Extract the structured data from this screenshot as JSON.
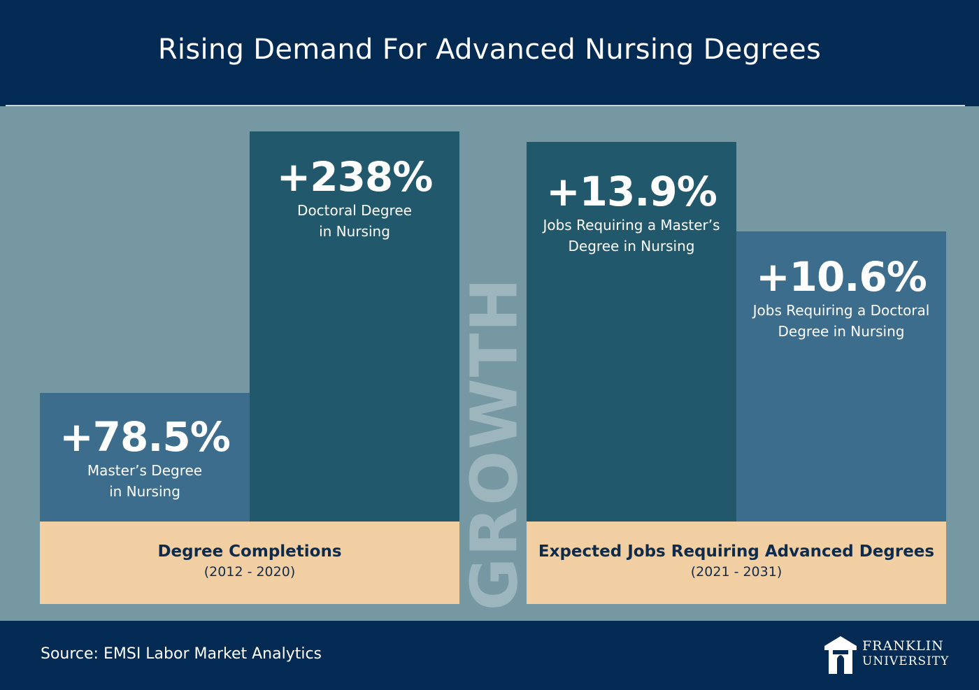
{
  "header": {
    "title": "Rising Demand For Advanced Nursing Degrees"
  },
  "chart_data": {
    "type": "bar",
    "title": "Rising Demand For Advanced Nursing Degrees",
    "value_axis_label": "GROWTH",
    "unit": "%",
    "groups": [
      {
        "title": "Degree Completions",
        "range": "(2012 - 2020)",
        "bars": [
          {
            "value": 78.5,
            "value_label": "+78.5%",
            "label_lines": [
              "Master’s Degree",
              "in Nursing"
            ],
            "color": "#3d6d8d"
          },
          {
            "value": 238,
            "value_label": "+238%",
            "label_lines": [
              "Doctoral Degree",
              "in Nursing"
            ],
            "color": "#22586b"
          }
        ]
      },
      {
        "title": "Expected Jobs Requiring Advanced Degrees",
        "range": "(2021 - 2031)",
        "bars": [
          {
            "value": 13.9,
            "value_label": "+13.9%",
            "label_lines": [
              "Jobs Requiring a Master’s",
              "Degree in Nursing"
            ],
            "color": "#22586b"
          },
          {
            "value": 10.6,
            "value_label": "+10.6%",
            "label_lines": [
              "Jobs Requiring a Doctoral",
              "Degree in Nursing"
            ],
            "color": "#3d6d8d"
          }
        ]
      }
    ],
    "colors": {
      "background": "#7698a3",
      "header": "#032a52",
      "group_box": "#f2cfa3",
      "group_text": "#0e2b4c",
      "growth_text": "#9db6bd"
    }
  },
  "footer": {
    "source": "Source: EMSI Labor Market Analytics",
    "logo": {
      "icon": "franklin-university-logo-icon",
      "line1": "FRANKLIN",
      "line2": "UNIVERSITY"
    }
  }
}
